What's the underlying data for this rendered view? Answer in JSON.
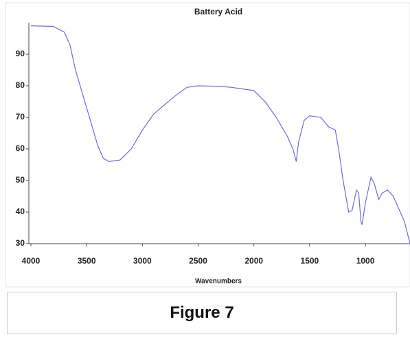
{
  "chart_data": {
    "type": "line",
    "title": "Battery Acid",
    "xlabel": "Wavenumbers",
    "x": [
      4000,
      3800,
      3700,
      3650,
      3600,
      3500,
      3400,
      3350,
      3300,
      3200,
      3100,
      3000,
      2900,
      2800,
      2700,
      2600,
      2500,
      2300,
      2200,
      2100,
      2000,
      1900,
      1800,
      1700,
      1650,
      1620,
      1600,
      1550,
      1500,
      1400,
      1330,
      1270,
      1240,
      1200,
      1150,
      1120,
      1080,
      1060,
      1040,
      1030,
      1000,
      950,
      920,
      880,
      850,
      800,
      750,
      700,
      650,
      600
    ],
    "values": [
      99,
      98.8,
      97,
      93,
      85,
      73,
      61,
      57,
      56,
      56.5,
      60,
      66,
      71,
      74,
      77,
      79.5,
      80,
      79.8,
      79.5,
      79,
      78.5,
      75,
      70,
      64,
      60,
      56,
      62,
      69,
      70.5,
      70,
      67,
      66,
      60,
      50,
      40,
      40.5,
      47,
      46,
      37,
      36,
      43,
      51,
      49,
      44,
      46,
      47,
      45,
      41,
      37,
      30
    ],
    "color": "#6a6ae0",
    "xlim": [
      4000,
      600
    ],
    "xticks": [
      4000,
      3500,
      3000,
      2500,
      2000,
      1500,
      1000
    ],
    "ylim": [
      30,
      100
    ],
    "yticks": [
      30,
      40,
      50,
      60,
      70,
      80,
      90
    ]
  },
  "caption": "Figure 7"
}
